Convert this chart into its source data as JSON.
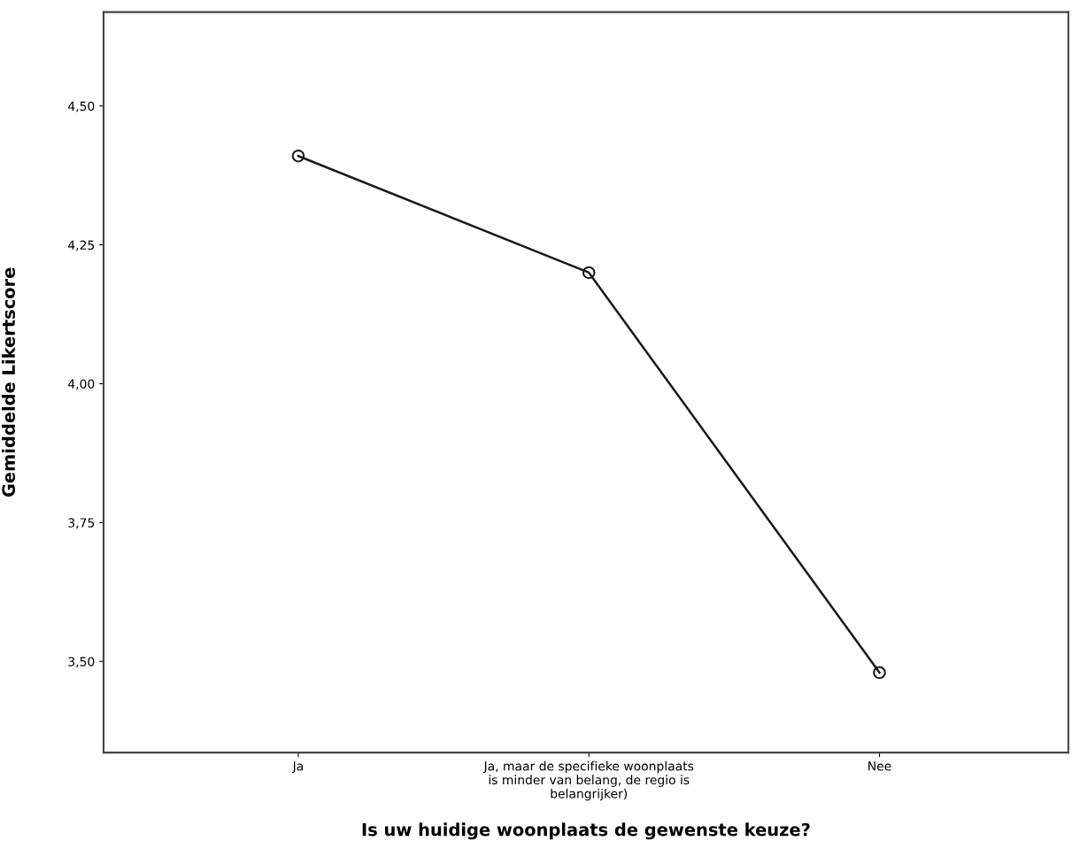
{
  "chart_data": {
    "type": "line",
    "xlabel": "Is uw huidige woonplaats de gewenste keuze?",
    "ylabel": "Gemiddelde Likertscore",
    "categories": [
      "Ja",
      "Ja, maar de specifieke woonplaats\nis minder van belang, de regio is\nbelangrijker)",
      "Nee"
    ],
    "series": [
      {
        "color": "#1a1a1a",
        "values": [
          4.41,
          4.2,
          3.48
        ]
      }
    ],
    "ylim": [
      3.336,
      4.669
    ],
    "yticks": [
      {
        "value": 3.5,
        "label": "3,50"
      },
      {
        "value": 3.75,
        "label": "3,75"
      },
      {
        "value": 4.0,
        "label": "4,00"
      },
      {
        "value": 4.25,
        "label": "4,25"
      },
      {
        "value": 4.5,
        "label": "4,50"
      }
    ],
    "marker": "circle",
    "line_style": "solid",
    "grid": false,
    "legend": false
  }
}
